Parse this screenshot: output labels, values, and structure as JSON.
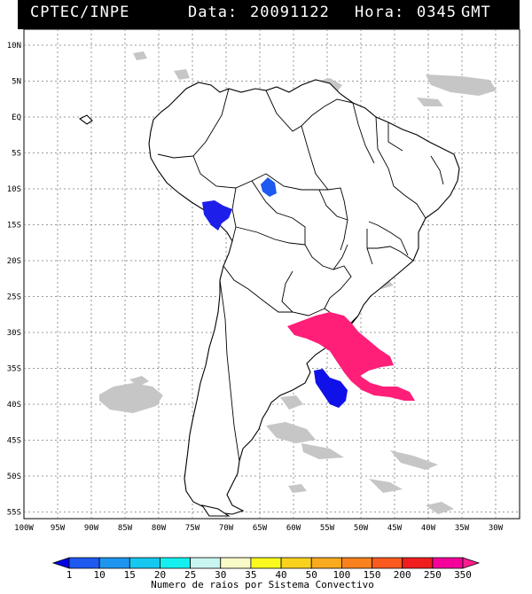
{
  "header": {
    "source": "CPTEC/INPE",
    "date_label": "Data:",
    "date_value": "20091122",
    "hour_label": "Hora:",
    "hour_value": "0345",
    "timezone": "GMT"
  },
  "lat_ticks": [
    "10N",
    "5N",
    "EQ",
    "5S",
    "10S",
    "15S",
    "20S",
    "25S",
    "30S",
    "35S",
    "40S",
    "45S",
    "50S",
    "55S"
  ],
  "lon_ticks": [
    "100W",
    "95W",
    "90W",
    "85W",
    "80W",
    "75W",
    "70W",
    "65W",
    "60W",
    "55W",
    "50W",
    "45W",
    "40W",
    "35W",
    "30W"
  ],
  "colorbar": {
    "labels": [
      "1",
      "10",
      "15",
      "20",
      "25",
      "30",
      "35",
      "40",
      "50",
      "100",
      "150",
      "200",
      "250",
      "350"
    ],
    "colors": [
      "#0000e6",
      "#1e5af0",
      "#1e96f0",
      "#14c8f0",
      "#14f0f0",
      "#c8f5f0",
      "#fafac8",
      "#fafa1e",
      "#fad21e",
      "#faaa1e",
      "#fa821e",
      "#fa5a1e",
      "#f01e1e",
      "#f5009b",
      "#ff1e8c"
    ],
    "title": "Numero de raios por Sistema Convectivo"
  },
  "map_colors": {
    "low_count": "#0000e6",
    "mid_low_count": "#1e5af0",
    "high_count": "#ff1e78",
    "cloud": "#c6c6c6"
  }
}
